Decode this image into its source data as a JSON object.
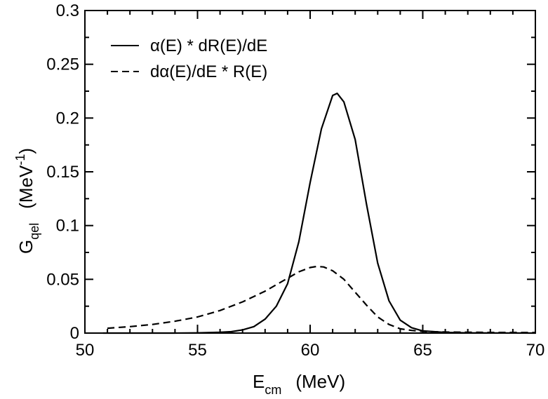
{
  "chart_data": {
    "type": "line",
    "xlabel": {
      "main": "E",
      "sub": "cm",
      "unit": "(MeV)"
    },
    "ylabel": {
      "main": "G",
      "sub": "qel",
      "unit_pre": "(MeV",
      "unit_sup": "-1",
      "unit_post": ")"
    },
    "xlim": [
      50,
      70
    ],
    "ylim": [
      0,
      0.3
    ],
    "xticks": [
      50,
      55,
      60,
      65,
      70
    ],
    "xtick_labels": [
      "50",
      "55",
      "60",
      "65",
      "70"
    ],
    "yticks": [
      0,
      0.05,
      0.1,
      0.15,
      0.2,
      0.25,
      0.3
    ],
    "ytick_labels": [
      "0",
      "0.05",
      "0.1",
      "0.15",
      "0.2",
      "0.25",
      "0.3"
    ],
    "grid": false,
    "legend_position": "top-left",
    "series": [
      {
        "name": "α(E) * dR(E)/dE",
        "style": "solid",
        "color": "#000000",
        "x": [
          50.8,
          52,
          53,
          54,
          55,
          56,
          56.5,
          57,
          57.5,
          58,
          58.5,
          59,
          59.5,
          60,
          60.5,
          61,
          61.2,
          61.5,
          62,
          62.5,
          63,
          63.5,
          64,
          64.5,
          65,
          66,
          67,
          68,
          70
        ],
        "y": [
          0,
          0,
          0,
          0,
          0.0002,
          0.0007,
          0.0013,
          0.003,
          0.006,
          0.013,
          0.025,
          0.046,
          0.085,
          0.14,
          0.19,
          0.221,
          0.223,
          0.215,
          0.18,
          0.12,
          0.065,
          0.03,
          0.012,
          0.005,
          0.002,
          0.0006,
          0.0002,
          0.0001,
          0
        ]
      },
      {
        "name": "dα(E)/dE * R(E)",
        "style": "dashed",
        "color": "#000000",
        "x": [
          51,
          52,
          53,
          54,
          55,
          56,
          57,
          58,
          58.5,
          59,
          59.5,
          60,
          60.3,
          60.6,
          61,
          61.5,
          62,
          62.5,
          63,
          63.5,
          64,
          64.5,
          65,
          66,
          67,
          68,
          70
        ],
        "y": [
          0.0045,
          0.006,
          0.008,
          0.011,
          0.015,
          0.021,
          0.029,
          0.039,
          0.045,
          0.051,
          0.057,
          0.061,
          0.062,
          0.0615,
          0.058,
          0.05,
          0.038,
          0.026,
          0.015,
          0.008,
          0.004,
          0.0025,
          0.0015,
          0.001,
          0.0008,
          0.0006,
          0.0005
        ]
      }
    ]
  }
}
